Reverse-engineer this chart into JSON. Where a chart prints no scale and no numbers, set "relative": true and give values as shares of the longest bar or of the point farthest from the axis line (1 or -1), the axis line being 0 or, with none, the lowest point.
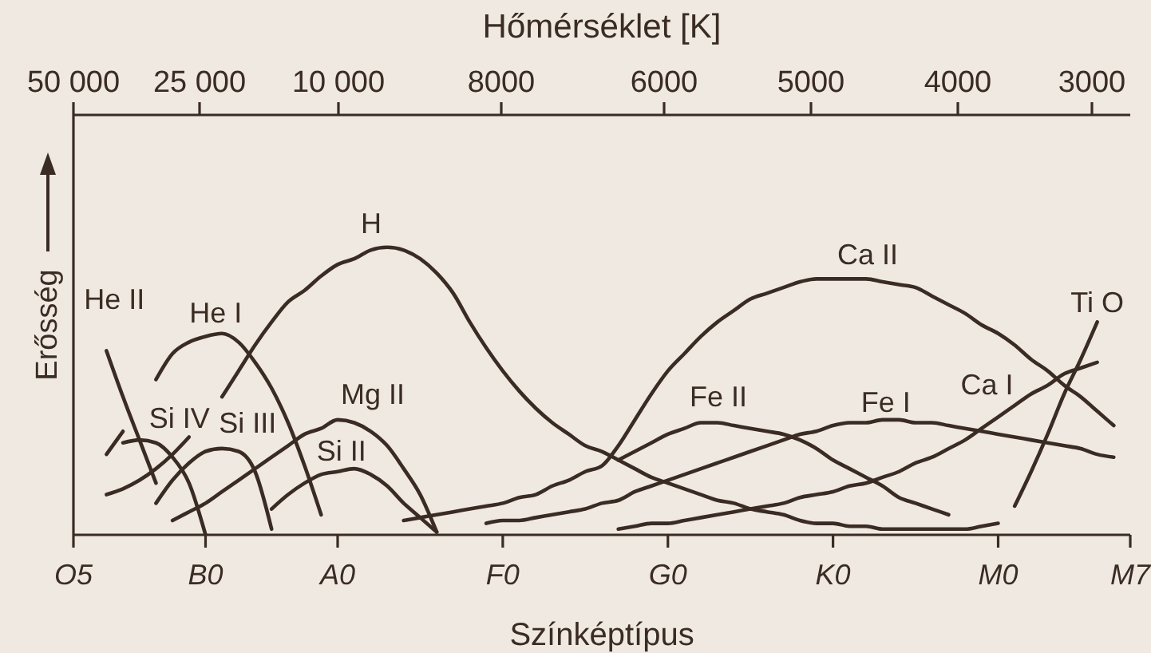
{
  "chart_data": {
    "type": "line",
    "relative": true,
    "xlabel": "Színképtípus",
    "x2label": "Hőmérséklet [K]",
    "ylabel": "Erősség",
    "annotations": [
      "50 000",
      "25 000",
      "10 000",
      "8000",
      "6000",
      "5000",
      "4000",
      "3000"
    ],
    "categories": [
      "O5",
      null,
      null,
      null,
      null,
      null,
      null,
      null,
      "B0",
      null,
      null,
      null,
      null,
      null,
      null,
      null,
      "A0",
      null,
      null,
      null,
      null,
      null,
      null,
      null,
      null,
      null,
      "F0",
      null,
      null,
      null,
      null,
      null,
      null,
      null,
      null,
      null,
      "G0",
      null,
      null,
      null,
      null,
      null,
      null,
      null,
      null,
      null,
      "K0",
      null,
      null,
      null,
      null,
      null,
      null,
      null,
      null,
      null,
      "M0",
      null,
      null,
      null,
      null,
      null,
      null,
      null,
      "M7"
    ],
    "grid": false,
    "legend": false,
    "marker": "none",
    "line_style": "solid",
    "series": [
      {
        "name": "He II",
        "color": "#3a2c24",
        "values": [
          null,
          null,
          0.64,
          0.48,
          0.33,
          0.18,
          null,
          null,
          null,
          null,
          null,
          null,
          null,
          null,
          null,
          null,
          null,
          null,
          null,
          null,
          null,
          null,
          null,
          null,
          null,
          null,
          null,
          null,
          null,
          null,
          null,
          null,
          null,
          null,
          null,
          null,
          null,
          null,
          null,
          null,
          null,
          null,
          null,
          null,
          null,
          null,
          null,
          null,
          null,
          null,
          null,
          null,
          null,
          null,
          null,
          null,
          null,
          null,
          null,
          null,
          null,
          null,
          null,
          null,
          null
        ]
      },
      {
        "name": "Si IV",
        "color": "#3a2c24",
        "values": [
          null,
          null,
          0.14,
          0.16,
          0.19,
          0.23,
          0.28,
          0.34,
          null,
          null,
          null,
          null,
          null,
          null,
          null,
          null,
          null,
          null,
          null,
          null,
          null,
          null,
          null,
          null,
          null,
          null,
          null,
          null,
          null,
          null,
          null,
          null,
          null,
          null,
          null,
          null,
          null,
          null,
          null,
          null,
          null,
          null,
          null,
          null,
          null,
          null,
          null,
          null,
          null,
          null,
          null,
          null,
          null,
          null,
          null,
          null,
          null,
          null,
          null,
          null,
          null,
          null,
          null,
          null,
          null
        ]
      },
      {
        "color": "#3a2c24",
        "values": [
          null,
          null,
          0.28,
          0.36,
          null,
          null,
          null,
          null,
          null,
          null,
          null,
          null,
          null,
          null,
          null,
          null,
          null,
          null,
          null,
          null,
          null,
          null,
          null,
          null,
          null,
          null,
          null,
          null,
          null,
          null,
          null,
          null,
          null,
          null,
          null,
          null,
          null,
          null,
          null,
          null,
          null,
          null,
          null,
          null,
          null,
          null,
          null,
          null,
          null,
          null,
          null,
          null,
          null,
          null,
          null,
          null,
          null,
          null,
          null,
          null,
          null,
          null,
          null,
          null,
          null
        ]
      },
      {
        "color": "#3a2c24",
        "values": [
          null,
          null,
          null,
          0.32,
          0.33,
          0.32,
          0.27,
          0.18,
          0,
          null,
          null,
          null,
          null,
          null,
          null,
          null,
          null,
          null,
          null,
          null,
          null,
          null,
          null,
          null,
          null,
          null,
          null,
          null,
          null,
          null,
          null,
          null,
          null,
          null,
          null,
          null,
          null,
          null,
          null,
          null,
          null,
          null,
          null,
          null,
          null,
          null,
          null,
          null,
          null,
          null,
          null,
          null,
          null,
          null,
          null,
          null,
          null,
          null,
          null,
          null,
          null,
          null,
          null,
          null,
          null
        ]
      },
      {
        "name": "Si III",
        "color": "#3a2c24",
        "values": [
          null,
          null,
          null,
          null,
          null,
          0.11,
          0.19,
          0.25,
          0.29,
          0.3,
          0.29,
          0.22,
          0.02,
          null,
          null,
          null,
          null,
          null,
          null,
          null,
          null,
          null,
          null,
          null,
          null,
          null,
          null,
          null,
          null,
          null,
          null,
          null,
          null,
          null,
          null,
          null,
          null,
          null,
          null,
          null,
          null,
          null,
          null,
          null,
          null,
          null,
          null,
          null,
          null,
          null,
          null,
          null,
          null,
          null,
          null,
          null,
          null,
          null,
          null,
          null,
          null,
          null,
          null,
          null,
          null
        ]
      },
      {
        "name": "He I",
        "color": "#3a2c24",
        "values": [
          null,
          null,
          null,
          null,
          null,
          0.54,
          0.63,
          0.67,
          0.69,
          0.7,
          0.67,
          0.6,
          0.51,
          0.39,
          0.24,
          0.07,
          null,
          null,
          null,
          null,
          null,
          null,
          null,
          null,
          null,
          null,
          null,
          null,
          null,
          null,
          null,
          null,
          null,
          null,
          null,
          null,
          null,
          null,
          null,
          null,
          null,
          null,
          null,
          null,
          null,
          null,
          null,
          null,
          null,
          null,
          null,
          null,
          null,
          null,
          null,
          null,
          null,
          null,
          null,
          null,
          null,
          null,
          null,
          null,
          null
        ]
      },
      {
        "name": "Mg II",
        "color": "#3a2c24",
        "values": [
          null,
          null,
          null,
          null,
          null,
          null,
          0.05,
          0.08,
          0.11,
          0.15,
          0.19,
          0.23,
          0.27,
          0.31,
          0.35,
          0.37,
          0.4,
          0.39,
          0.36,
          0.31,
          0.23,
          0.14,
          0.01,
          null,
          null,
          null,
          null,
          null,
          null,
          null,
          null,
          null,
          null,
          null,
          null,
          null,
          null,
          null,
          null,
          null,
          null,
          null,
          null,
          null,
          null,
          null,
          null,
          null,
          null,
          null,
          null,
          null,
          null,
          null,
          null,
          null,
          null,
          null,
          null,
          null,
          null,
          null,
          null,
          null,
          null
        ]
      },
      {
        "name": "Si II",
        "color": "#3a2c24",
        "values": [
          null,
          null,
          null,
          null,
          null,
          null,
          null,
          null,
          null,
          null,
          null,
          null,
          0.09,
          0.14,
          0.18,
          0.21,
          0.22,
          0.23,
          0.21,
          0.17,
          0.11,
          0.06,
          0.01,
          null,
          null,
          null,
          null,
          null,
          null,
          null,
          null,
          null,
          null,
          null,
          null,
          null,
          null,
          null,
          null,
          null,
          null,
          null,
          null,
          null,
          null,
          null,
          null,
          null,
          null,
          null,
          null,
          null,
          null,
          null,
          null,
          null,
          null,
          null,
          null,
          null,
          null,
          null,
          null,
          null,
          null
        ]
      },
      {
        "name": "H",
        "color": "#3a2c24",
        "values": [
          null,
          null,
          null,
          null,
          null,
          null,
          null,
          null,
          null,
          0.48,
          0.57,
          0.66,
          0.74,
          0.81,
          0.85,
          0.9,
          0.94,
          0.96,
          0.99,
          1,
          0.99,
          0.96,
          0.91,
          0.84,
          0.74,
          0.65,
          0.57,
          0.5,
          0.44,
          0.39,
          0.35,
          0.31,
          0.29,
          0.26,
          0.23,
          0.2,
          0.18,
          0.16,
          0.14,
          0.12,
          0.11,
          0.09,
          0.08,
          0.07,
          0.05,
          0.04,
          0.04,
          0.03,
          0.03,
          0.02,
          0.02,
          0.02,
          0.02,
          0.02,
          0.02,
          0.03,
          0.04,
          null,
          null,
          null,
          null,
          null,
          null,
          null,
          null
        ]
      },
      {
        "name": "Ca II",
        "color": "#3a2c24",
        "values": [
          null,
          null,
          null,
          null,
          null,
          null,
          null,
          null,
          null,
          null,
          null,
          null,
          null,
          null,
          null,
          null,
          null,
          null,
          null,
          null,
          0.05,
          0.06,
          0.07,
          0.08,
          0.09,
          0.1,
          0.11,
          0.13,
          0.14,
          0.17,
          0.19,
          0.22,
          0.24,
          0.31,
          0.4,
          0.49,
          0.57,
          0.63,
          0.69,
          0.74,
          0.78,
          0.82,
          0.84,
          0.86,
          0.88,
          0.89,
          0.89,
          0.89,
          0.89,
          0.88,
          0.87,
          0.86,
          0.83,
          0.8,
          0.77,
          0.73,
          0.7,
          0.66,
          0.61,
          0.57,
          0.52,
          0.48,
          0.43,
          0.38,
          null
        ]
      },
      {
        "name": "Fe II",
        "color": "#3a2c24",
        "values": [
          null,
          null,
          null,
          null,
          null,
          null,
          null,
          null,
          null,
          null,
          null,
          null,
          null,
          null,
          null,
          null,
          null,
          null,
          null,
          null,
          null,
          null,
          null,
          null,
          null,
          null,
          null,
          null,
          null,
          null,
          null,
          null,
          null,
          0.26,
          0.29,
          0.32,
          0.35,
          0.37,
          0.39,
          0.39,
          0.38,
          0.37,
          0.36,
          0.35,
          0.33,
          0.3,
          0.26,
          0.23,
          0.2,
          0.17,
          0.13,
          0.11,
          0.09,
          0.07,
          null,
          null,
          null,
          null,
          null,
          null,
          null,
          null,
          null,
          null,
          null
        ]
      },
      {
        "name": "Fe I",
        "color": "#3a2c24",
        "values": [
          null,
          null,
          null,
          null,
          null,
          null,
          null,
          null,
          null,
          null,
          null,
          null,
          null,
          null,
          null,
          null,
          null,
          null,
          null,
          null,
          null,
          null,
          null,
          null,
          null,
          0.04,
          0.05,
          0.05,
          0.06,
          0.07,
          0.08,
          0.09,
          0.11,
          0.12,
          0.15,
          0.17,
          0.19,
          0.21,
          0.23,
          0.25,
          0.27,
          0.29,
          0.31,
          0.33,
          0.35,
          0.36,
          0.38,
          0.39,
          0.39,
          0.4,
          0.4,
          0.39,
          0.39,
          0.38,
          0.37,
          0.36,
          0.35,
          0.34,
          0.33,
          0.32,
          0.31,
          0.3,
          0.28,
          0.27,
          null
        ]
      },
      {
        "name": "Ca I",
        "color": "#3a2c24",
        "values": [
          null,
          null,
          null,
          null,
          null,
          null,
          null,
          null,
          null,
          null,
          null,
          null,
          null,
          null,
          null,
          null,
          null,
          null,
          null,
          null,
          null,
          null,
          null,
          null,
          null,
          null,
          null,
          null,
          null,
          null,
          null,
          null,
          null,
          0.02,
          0.03,
          0.04,
          0.04,
          0.05,
          0.06,
          0.07,
          0.08,
          0.09,
          0.1,
          0.11,
          0.13,
          0.14,
          0.15,
          0.17,
          0.18,
          0.2,
          0.22,
          0.25,
          0.27,
          0.3,
          0.33,
          0.37,
          0.41,
          0.45,
          0.49,
          0.52,
          0.56,
          0.58,
          0.6,
          null,
          null
        ]
      },
      {
        "name": "Ti O",
        "color": "#3a2c24",
        "values": [
          null,
          null,
          null,
          null,
          null,
          null,
          null,
          null,
          null,
          null,
          null,
          null,
          null,
          null,
          null,
          null,
          null,
          null,
          null,
          null,
          null,
          null,
          null,
          null,
          null,
          null,
          null,
          null,
          null,
          null,
          null,
          null,
          null,
          null,
          null,
          null,
          null,
          null,
          null,
          null,
          null,
          null,
          null,
          null,
          null,
          null,
          null,
          null,
          null,
          null,
          null,
          null,
          null,
          null,
          null,
          null,
          null,
          0.1,
          0.22,
          0.35,
          0.49,
          0.61,
          0.74,
          null,
          null
        ]
      }
    ]
  }
}
